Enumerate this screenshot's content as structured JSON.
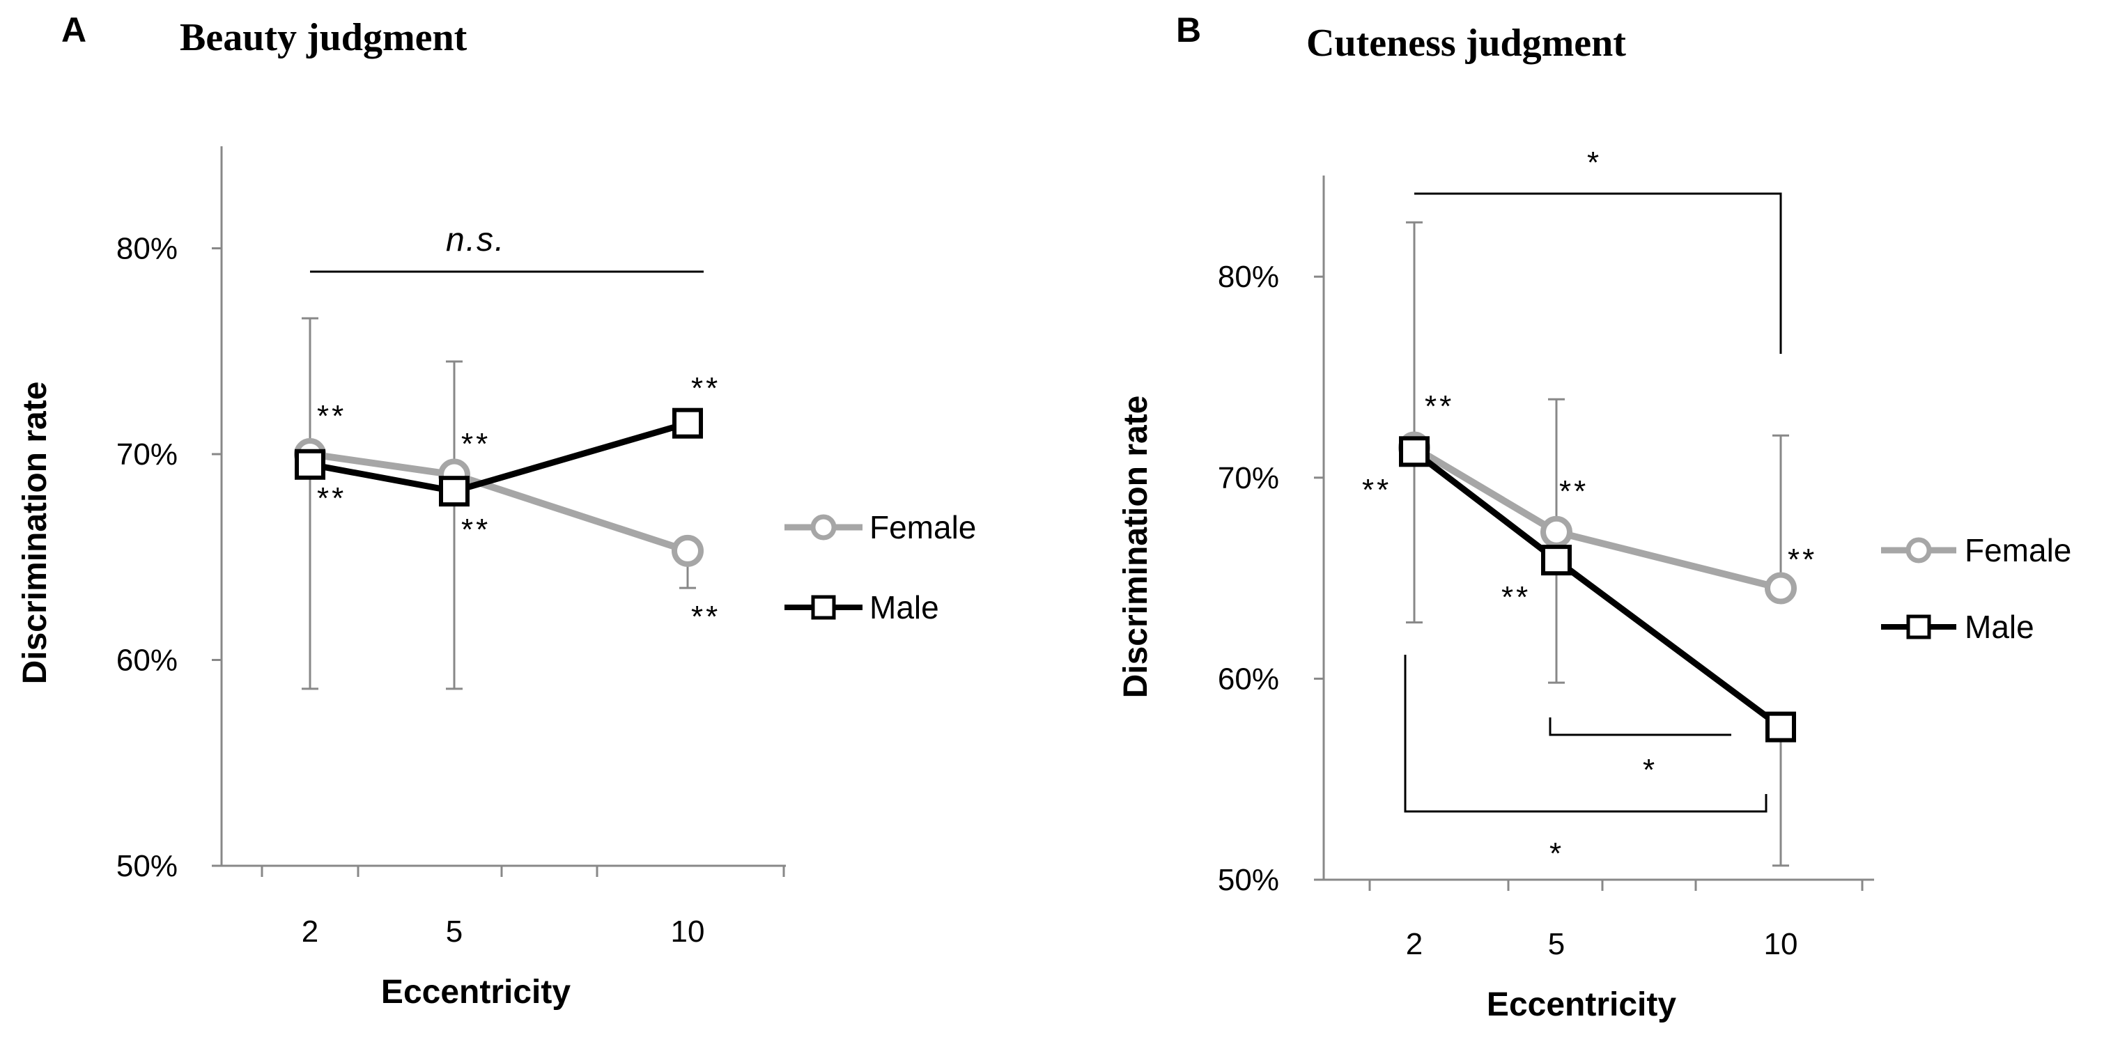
{
  "chart_data": [
    {
      "type": "line",
      "panel": "A",
      "title": "Beauty judgment",
      "xlabel": "Eccentricity",
      "ylabel": "Discrimination rate",
      "categories": [
        "2",
        "5",
        "10"
      ],
      "x": [
        2,
        5,
        10
      ],
      "ylim": [
        50,
        85
      ],
      "yticks": [
        50,
        60,
        70,
        80
      ],
      "ytick_labels": [
        "50%",
        "60%",
        "70%",
        "80%"
      ],
      "series": [
        {
          "name": "Female",
          "color": "#a6a6a6",
          "marker": "circle",
          "values": [
            70.0,
            69.0,
            65.3
          ],
          "err_low": [
            11.4,
            10.4,
            1.8
          ],
          "err_high": [
            6.6,
            5.5,
            0
          ],
          "sig_labels": [
            "**",
            "**",
            "**"
          ]
        },
        {
          "name": "Male",
          "color": "#000000",
          "marker": "square",
          "values": [
            69.5,
            68.2,
            71.5
          ],
          "err_low": [
            0,
            0,
            0
          ],
          "err_high": [
            0,
            0,
            0
          ],
          "sig_labels": [
            "**",
            "**",
            "**"
          ]
        }
      ],
      "comparisons": [
        {
          "label": "n.s."
        }
      ],
      "legend": [
        "Female",
        "Male"
      ]
    },
    {
      "type": "line",
      "panel": "B",
      "title": "Cuteness judgment",
      "xlabel": "Eccentricity",
      "ylabel": "Discrimination rate",
      "categories": [
        "2",
        "5",
        "10"
      ],
      "x": [
        2,
        5,
        10
      ],
      "ylim": [
        50,
        85
      ],
      "yticks": [
        50,
        60,
        70,
        80
      ],
      "ytick_labels": [
        "50%",
        "60%",
        "70%",
        "80%"
      ],
      "series": [
        {
          "name": "Female",
          "color": "#a6a6a6",
          "marker": "circle",
          "values": [
            71.5,
            67.3,
            64.5
          ],
          "err_low": [
            0,
            0,
            0
          ],
          "err_high": [
            11.2,
            6.6,
            7.6
          ],
          "sig_labels": [
            "**",
            "**",
            "**"
          ]
        },
        {
          "name": "Male",
          "color": "#000000",
          "marker": "square",
          "values": [
            71.3,
            65.9,
            57.6
          ],
          "err_low": [
            8.5,
            6.1,
            6.9
          ],
          "err_high": [
            0,
            0,
            0
          ],
          "sig_labels": [
            "**",
            "**",
            ""
          ]
        }
      ],
      "comparisons": [
        {
          "label": "*"
        },
        {
          "label": "*"
        },
        {
          "label": "*"
        }
      ],
      "legend": [
        "Female",
        "Male"
      ]
    }
  ]
}
